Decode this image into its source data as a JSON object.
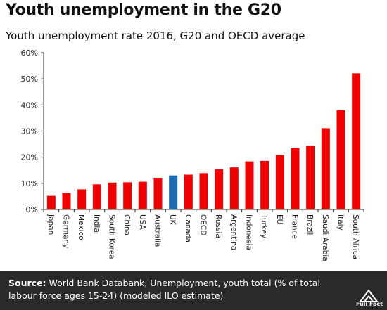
{
  "header": {
    "title": "Youth unemployment in the G20",
    "subtitle": "Youth unemployment rate 2016, G20 and OECD average"
  },
  "footer": {
    "source_label": "Source:",
    "source_text": " World Bank Databank, Unemployment, youth total (% of total labour force ages 15-24) (modeled ILO estimate)",
    "logo_text": "Full Fact"
  },
  "colors": {
    "bar": "#ee0000",
    "highlight": "#1f6cb0",
    "footer_bg": "#2a2a2a"
  },
  "chart_data": {
    "type": "bar",
    "title": "Youth unemployment in the G20",
    "subtitle": "Youth unemployment rate 2016, G20 and OECD average",
    "categories": [
      "Japan",
      "Germany",
      "Mexico",
      "India",
      "South Korea",
      "China",
      "USA",
      "Australia",
      "UK",
      "Canada",
      "OECD",
      "Russia",
      "Argentina",
      "Indonesia",
      "Turkey",
      "EU",
      "France",
      "Brazil",
      "Saudi Arabia",
      "Italy",
      "South Africa"
    ],
    "values": [
      5.2,
      6.3,
      7.7,
      9.6,
      10.3,
      10.4,
      10.6,
      12.1,
      13.0,
      13.3,
      13.9,
      15.4,
      16.1,
      18.4,
      18.6,
      20.8,
      23.5,
      24.3,
      31.1,
      38.0,
      52.1
    ],
    "highlight": [
      "UK"
    ],
    "y_ticks": [
      "0%",
      "10%",
      "20%",
      "30%",
      "40%",
      "50%",
      "60%"
    ],
    "ylim": [
      0,
      60
    ],
    "xlabel": "",
    "ylabel": "",
    "grid": false,
    "legend": "none"
  }
}
